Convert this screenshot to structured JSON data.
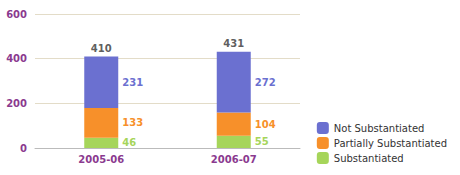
{
  "chart_data": {
    "type": "bar",
    "categories": [
      "2005-06",
      "2006-07"
    ],
    "series": [
      {
        "name": "Substantiated",
        "color": "#a6d55a",
        "values": [
          46,
          55
        ]
      },
      {
        "name": "Partially Substantiated",
        "color": "#f7902a",
        "values": [
          133,
          104
        ]
      },
      {
        "name": "Not Substantiated",
        "color": "#6b70d0",
        "values": [
          231,
          272
        ]
      }
    ],
    "totals": [
      410,
      431
    ],
    "stacked": true,
    "data_labels": true,
    "ylim": [
      0,
      600
    ],
    "yticks": [
      0,
      200,
      400,
      600
    ],
    "grid": true,
    "legend": "lower right"
  }
}
